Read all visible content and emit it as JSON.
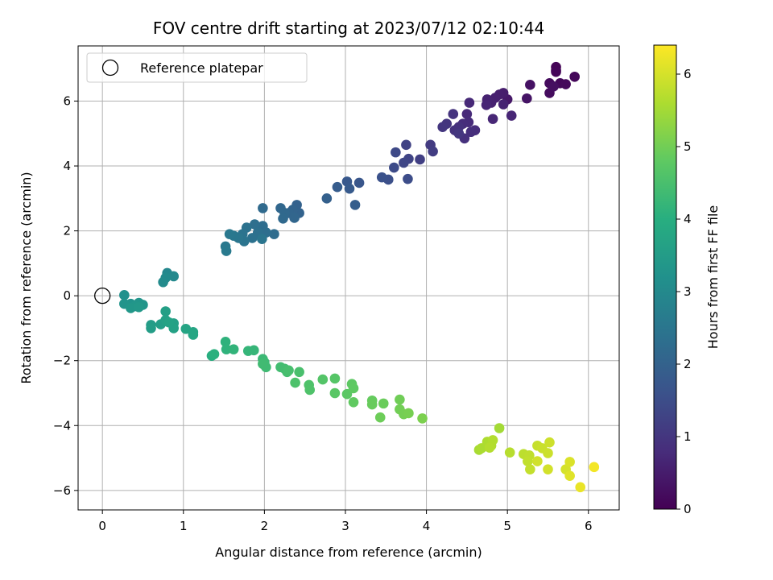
{
  "chart_data": {
    "type": "scatter",
    "title": "FOV centre drift starting at 2023/07/12 02:10:44",
    "xlabel": "Angular distance from reference (arcmin)",
    "ylabel": "Rotation from reference (arcmin)",
    "colorbar_label": "Hours from first FF file",
    "xlim": [
      -0.3,
      6.38
    ],
    "ylim": [
      -6.6,
      7.7
    ],
    "xticks": [
      "0",
      "1",
      "2",
      "3",
      "4",
      "5",
      "6"
    ],
    "yticks": [
      "−6",
      "−4",
      "−2",
      "0",
      "2",
      "4",
      "6"
    ],
    "colorbar_ticks": [
      "0",
      "1",
      "2",
      "3",
      "4",
      "5",
      "6"
    ],
    "colorbar_range": [
      0,
      6.4
    ],
    "colormap": "viridis",
    "grid": true,
    "legend_position": "top-left",
    "legend": [
      {
        "label": "Reference platepar",
        "marker": "open-circle",
        "x": 0,
        "y": 0
      }
    ],
    "points": [
      {
        "x": 5.6,
        "y": 7.05,
        "t": 0.05
      },
      {
        "x": 5.6,
        "y": 6.95,
        "t": 0.05
      },
      {
        "x": 5.6,
        "y": 6.9,
        "t": 0.08
      },
      {
        "x": 5.83,
        "y": 6.75,
        "t": 0.1
      },
      {
        "x": 5.65,
        "y": 6.55,
        "t": 0.12
      },
      {
        "x": 5.72,
        "y": 6.52,
        "t": 0.15
      },
      {
        "x": 5.52,
        "y": 6.55,
        "t": 0.18
      },
      {
        "x": 5.52,
        "y": 6.25,
        "t": 0.2
      },
      {
        "x": 5.57,
        "y": 6.45,
        "t": 0.25
      },
      {
        "x": 5.28,
        "y": 6.5,
        "t": 0.3
      },
      {
        "x": 5.24,
        "y": 6.08,
        "t": 0.35
      },
      {
        "x": 5.0,
        "y": 6.05,
        "t": 0.42
      },
      {
        "x": 4.95,
        "y": 6.25,
        "t": 0.5
      },
      {
        "x": 4.9,
        "y": 6.2,
        "t": 0.52
      },
      {
        "x": 4.85,
        "y": 6.1,
        "t": 0.55
      },
      {
        "x": 4.8,
        "y": 5.95,
        "t": 0.58
      },
      {
        "x": 4.75,
        "y": 6.05,
        "t": 0.6
      },
      {
        "x": 4.95,
        "y": 5.9,
        "t": 0.62
      },
      {
        "x": 4.74,
        "y": 5.88,
        "t": 0.65
      },
      {
        "x": 5.05,
        "y": 5.55,
        "t": 0.68
      },
      {
        "x": 4.82,
        "y": 5.45,
        "t": 0.7
      },
      {
        "x": 4.53,
        "y": 5.95,
        "t": 0.72
      },
      {
        "x": 4.5,
        "y": 5.6,
        "t": 0.75
      },
      {
        "x": 4.52,
        "y": 5.35,
        "t": 0.78
      },
      {
        "x": 4.45,
        "y": 5.3,
        "t": 0.8
      },
      {
        "x": 4.6,
        "y": 5.1,
        "t": 0.82
      },
      {
        "x": 4.55,
        "y": 5.05,
        "t": 0.85
      },
      {
        "x": 4.47,
        "y": 4.85,
        "t": 0.88
      },
      {
        "x": 4.4,
        "y": 5.2,
        "t": 0.9
      },
      {
        "x": 4.35,
        "y": 5.1,
        "t": 0.92
      },
      {
        "x": 4.33,
        "y": 5.6,
        "t": 0.95
      },
      {
        "x": 4.25,
        "y": 5.3,
        "t": 0.97
      },
      {
        "x": 4.2,
        "y": 5.2,
        "t": 1.0
      },
      {
        "x": 4.4,
        "y": 5.0,
        "t": 1.02
      },
      {
        "x": 4.05,
        "y": 4.65,
        "t": 1.1
      },
      {
        "x": 4.08,
        "y": 4.45,
        "t": 1.15
      },
      {
        "x": 3.92,
        "y": 4.2,
        "t": 1.2
      },
      {
        "x": 3.75,
        "y": 4.65,
        "t": 1.25
      },
      {
        "x": 3.78,
        "y": 4.22,
        "t": 1.3
      },
      {
        "x": 3.72,
        "y": 4.1,
        "t": 1.35
      },
      {
        "x": 3.62,
        "y": 4.42,
        "t": 1.4
      },
      {
        "x": 3.6,
        "y": 3.95,
        "t": 1.45
      },
      {
        "x": 3.77,
        "y": 3.6,
        "t": 1.5
      },
      {
        "x": 3.53,
        "y": 3.58,
        "t": 1.55
      },
      {
        "x": 3.45,
        "y": 3.65,
        "t": 1.6
      },
      {
        "x": 3.17,
        "y": 3.48,
        "t": 1.7
      },
      {
        "x": 3.02,
        "y": 3.52,
        "t": 1.75
      },
      {
        "x": 3.05,
        "y": 3.3,
        "t": 1.8
      },
      {
        "x": 2.9,
        "y": 3.35,
        "t": 1.85
      },
      {
        "x": 3.12,
        "y": 2.8,
        "t": 1.9
      },
      {
        "x": 2.77,
        "y": 3.0,
        "t": 1.95
      },
      {
        "x": 2.4,
        "y": 2.8,
        "t": 2.0
      },
      {
        "x": 2.43,
        "y": 2.55,
        "t": 2.02
      },
      {
        "x": 2.35,
        "y": 2.65,
        "t": 2.05
      },
      {
        "x": 2.3,
        "y": 2.55,
        "t": 2.08
      },
      {
        "x": 2.37,
        "y": 2.4,
        "t": 2.1
      },
      {
        "x": 2.2,
        "y": 2.7,
        "t": 2.12
      },
      {
        "x": 2.25,
        "y": 2.55,
        "t": 2.15
      },
      {
        "x": 2.23,
        "y": 2.38,
        "t": 2.17
      },
      {
        "x": 1.98,
        "y": 2.7,
        "t": 2.2
      },
      {
        "x": 2.12,
        "y": 1.9,
        "t": 2.25
      },
      {
        "x": 1.98,
        "y": 2.15,
        "t": 2.28
      },
      {
        "x": 2.02,
        "y": 1.95,
        "t": 2.3
      },
      {
        "x": 1.88,
        "y": 2.2,
        "t": 2.32
      },
      {
        "x": 1.92,
        "y": 1.95,
        "t": 2.35
      },
      {
        "x": 1.85,
        "y": 1.78,
        "t": 2.38
      },
      {
        "x": 1.78,
        "y": 2.1,
        "t": 2.4
      },
      {
        "x": 1.73,
        "y": 1.9,
        "t": 2.42
      },
      {
        "x": 1.75,
        "y": 1.68,
        "t": 2.45
      },
      {
        "x": 1.97,
        "y": 1.75,
        "t": 2.47
      },
      {
        "x": 1.68,
        "y": 1.78,
        "t": 2.5
      },
      {
        "x": 1.62,
        "y": 1.85,
        "t": 2.52
      },
      {
        "x": 1.57,
        "y": 1.9,
        "t": 2.55
      },
      {
        "x": 1.52,
        "y": 1.52,
        "t": 2.58
      },
      {
        "x": 1.53,
        "y": 1.38,
        "t": 2.6
      },
      {
        "x": 0.8,
        "y": 0.7,
        "t": 2.95
      },
      {
        "x": 0.88,
        "y": 0.6,
        "t": 3.0
      },
      {
        "x": 0.78,
        "y": 0.55,
        "t": 3.02
      },
      {
        "x": 0.75,
        "y": 0.42,
        "t": 3.05
      },
      {
        "x": 0.27,
        "y": 0.02,
        "t": 3.2
      },
      {
        "x": 0.35,
        "y": -0.25,
        "t": 3.25
      },
      {
        "x": 0.27,
        "y": -0.25,
        "t": 3.27
      },
      {
        "x": 0.45,
        "y": -0.22,
        "t": 3.3
      },
      {
        "x": 0.5,
        "y": -0.28,
        "t": 3.32
      },
      {
        "x": 0.4,
        "y": -0.32,
        "t": 3.35
      },
      {
        "x": 0.35,
        "y": -0.38,
        "t": 3.37
      },
      {
        "x": 0.45,
        "y": -0.35,
        "t": 3.4
      },
      {
        "x": 0.6,
        "y": -0.9,
        "t": 3.5
      },
      {
        "x": 0.6,
        "y": -1.0,
        "t": 3.52
      },
      {
        "x": 0.72,
        "y": -0.88,
        "t": 3.55
      },
      {
        "x": 0.78,
        "y": -0.48,
        "t": 3.58
      },
      {
        "x": 0.78,
        "y": -0.75,
        "t": 3.6
      },
      {
        "x": 0.88,
        "y": -0.85,
        "t": 3.62
      },
      {
        "x": 0.88,
        "y": -1.0,
        "t": 3.65
      },
      {
        "x": 0.82,
        "y": -0.82,
        "t": 3.67
      },
      {
        "x": 1.03,
        "y": -1.02,
        "t": 3.72
      },
      {
        "x": 1.12,
        "y": -1.12,
        "t": 3.75
      },
      {
        "x": 1.12,
        "y": -1.2,
        "t": 3.78
      },
      {
        "x": 1.35,
        "y": -1.85,
        "t": 4.0
      },
      {
        "x": 1.38,
        "y": -1.8,
        "t": 4.05
      },
      {
        "x": 1.52,
        "y": -1.42,
        "t": 4.1
      },
      {
        "x": 1.53,
        "y": -1.65,
        "t": 4.12
      },
      {
        "x": 1.62,
        "y": -1.65,
        "t": 4.15
      },
      {
        "x": 1.8,
        "y": -1.7,
        "t": 4.2
      },
      {
        "x": 1.87,
        "y": -1.68,
        "t": 4.22
      },
      {
        "x": 1.98,
        "y": -1.95,
        "t": 4.3
      },
      {
        "x": 2.0,
        "y": -2.05,
        "t": 4.32
      },
      {
        "x": 2.02,
        "y": -2.2,
        "t": 4.35
      },
      {
        "x": 1.98,
        "y": -2.1,
        "t": 4.37
      },
      {
        "x": 2.2,
        "y": -2.2,
        "t": 4.4
      },
      {
        "x": 2.25,
        "y": -2.25,
        "t": 4.42
      },
      {
        "x": 2.28,
        "y": -2.35,
        "t": 4.45
      },
      {
        "x": 2.3,
        "y": -2.3,
        "t": 4.47
      },
      {
        "x": 2.43,
        "y": -2.35,
        "t": 4.5
      },
      {
        "x": 2.38,
        "y": -2.68,
        "t": 4.55
      },
      {
        "x": 2.55,
        "y": -2.75,
        "t": 4.58
      },
      {
        "x": 2.56,
        "y": -2.9,
        "t": 4.6
      },
      {
        "x": 2.72,
        "y": -2.58,
        "t": 4.65
      },
      {
        "x": 2.87,
        "y": -2.55,
        "t": 4.68
      },
      {
        "x": 2.87,
        "y": -3.0,
        "t": 4.72
      },
      {
        "x": 3.02,
        "y": -3.03,
        "t": 4.75
      },
      {
        "x": 3.08,
        "y": -2.72,
        "t": 4.78
      },
      {
        "x": 3.1,
        "y": -2.85,
        "t": 4.8
      },
      {
        "x": 3.1,
        "y": -3.28,
        "t": 4.82
      },
      {
        "x": 3.33,
        "y": -3.23,
        "t": 4.87
      },
      {
        "x": 3.33,
        "y": -3.35,
        "t": 4.9
      },
      {
        "x": 3.47,
        "y": -3.32,
        "t": 4.92
      },
      {
        "x": 3.43,
        "y": -3.75,
        "t": 4.95
      },
      {
        "x": 3.67,
        "y": -3.2,
        "t": 4.98
      },
      {
        "x": 3.67,
        "y": -3.5,
        "t": 5.0
      },
      {
        "x": 3.72,
        "y": -3.65,
        "t": 5.02
      },
      {
        "x": 3.78,
        "y": -3.62,
        "t": 5.05
      },
      {
        "x": 3.95,
        "y": -3.78,
        "t": 5.1
      },
      {
        "x": 4.9,
        "y": -4.08,
        "t": 5.5
      },
      {
        "x": 4.65,
        "y": -4.75,
        "t": 5.55
      },
      {
        "x": 4.68,
        "y": -4.7,
        "t": 5.58
      },
      {
        "x": 4.75,
        "y": -4.5,
        "t": 5.6
      },
      {
        "x": 4.8,
        "y": -4.62,
        "t": 5.62
      },
      {
        "x": 4.82,
        "y": -4.45,
        "t": 5.65
      },
      {
        "x": 4.78,
        "y": -4.68,
        "t": 5.67
      },
      {
        "x": 5.03,
        "y": -4.83,
        "t": 5.7
      },
      {
        "x": 5.2,
        "y": -4.88,
        "t": 5.75
      },
      {
        "x": 5.27,
        "y": -4.92,
        "t": 5.78
      },
      {
        "x": 5.25,
        "y": -5.1,
        "t": 5.8
      },
      {
        "x": 5.28,
        "y": -5.35,
        "t": 5.82
      },
      {
        "x": 5.37,
        "y": -4.62,
        "t": 5.85
      },
      {
        "x": 5.43,
        "y": -4.7,
        "t": 5.88
      },
      {
        "x": 5.5,
        "y": -4.85,
        "t": 5.9
      },
      {
        "x": 5.52,
        "y": -4.52,
        "t": 5.92
      },
      {
        "x": 5.37,
        "y": -5.1,
        "t": 5.95
      },
      {
        "x": 5.5,
        "y": -5.35,
        "t": 5.97
      },
      {
        "x": 5.72,
        "y": -5.35,
        "t": 6.0
      },
      {
        "x": 5.77,
        "y": -5.12,
        "t": 6.05
      },
      {
        "x": 5.77,
        "y": -5.55,
        "t": 6.1
      },
      {
        "x": 5.9,
        "y": -5.9,
        "t": 6.2
      },
      {
        "x": 6.07,
        "y": -5.28,
        "t": 6.3
      }
    ]
  }
}
